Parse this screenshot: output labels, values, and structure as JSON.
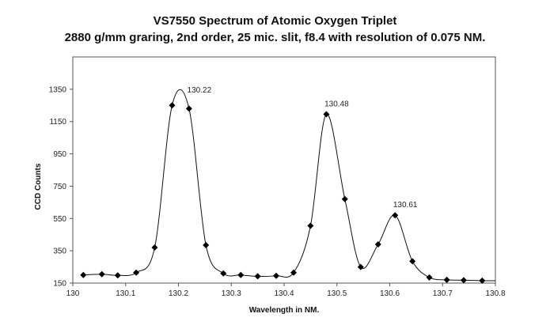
{
  "chart_data": {
    "type": "scatter",
    "title": "VS7550 Spectrum of Atomic Oxygen Triplet",
    "subtitle": "2880 g/mm graring, 2nd order, 25 mic. slit, f8.4 with resolution of 0.075 NM.",
    "xlabel": "Wavelength in NM.",
    "ylabel": "CCD Counts",
    "xlim": [
      130,
      130.8
    ],
    "ylim": [
      150,
      1550
    ],
    "x_ticks": [
      "130",
      "130.1",
      "130.2",
      "130.3",
      "130.4",
      "130.5",
      "130.6",
      "130.7",
      "130.8"
    ],
    "y_ticks": [
      "150",
      "350",
      "550",
      "750",
      "950",
      "1150",
      "1350"
    ],
    "grid": false,
    "marker": "diamond",
    "line": "smooth",
    "series": [
      {
        "x": [
          130.02,
          130.055,
          130.085,
          130.12,
          130.155,
          130.188,
          130.22,
          130.252,
          130.285,
          130.318,
          130.35,
          130.385,
          130.418,
          130.45,
          130.48,
          130.515,
          130.545,
          130.578,
          130.61,
          130.643,
          130.675,
          130.708,
          130.74,
          130.775
        ],
        "y": [
          200,
          205,
          198,
          215,
          370,
          1250,
          1230,
          385,
          210,
          200,
          192,
          195,
          215,
          505,
          1195,
          670,
          250,
          390,
          570,
          285,
          185,
          170,
          168,
          165
        ]
      }
    ],
    "annotations": [
      {
        "text": "130.22",
        "x": 130.22,
        "y": 1280
      },
      {
        "text": "130.48",
        "x": 130.48,
        "y": 1195
      },
      {
        "text": "130.61",
        "x": 130.61,
        "y": 570
      }
    ]
  }
}
